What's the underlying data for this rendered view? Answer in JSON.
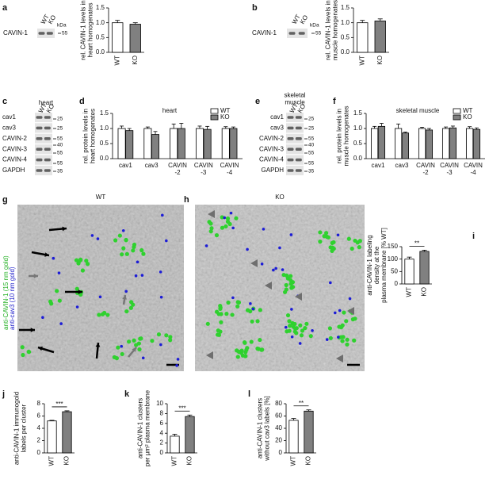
{
  "panel_letters": [
    "a",
    "b",
    "c",
    "d",
    "e",
    "f",
    "g",
    "h",
    "i",
    "j",
    "k",
    "l"
  ],
  "chart_data": [
    {
      "type": "bar",
      "ylabel": "rel. CAVIN-1 levels in\nheart homogenates",
      "categories": [
        "WT",
        "KO"
      ],
      "values": [
        1.0,
        0.95
      ],
      "errors": [
        0.08,
        0.05
      ],
      "colors": [
        "#ffffff",
        "#808080"
      ],
      "ylim": [
        0,
        1.5
      ],
      "yticks": [
        {
          "value": 0,
          "label": "0.0"
        },
        0.5,
        {
          "value": 1,
          "label": "1.0"
        },
        1.5
      ]
    },
    {
      "type": "bar",
      "ylabel": "rel. CAVIN-1 levels in\nmuscle homogenates",
      "categories": [
        "WT",
        "KO"
      ],
      "values": [
        1.0,
        1.06
      ],
      "errors": [
        0.08,
        0.07
      ],
      "colors": [
        "#ffffff",
        "#808080"
      ],
      "ylim": [
        0,
        1.5
      ],
      "yticks": [
        {
          "value": 0,
          "label": "0.0"
        },
        0.5,
        {
          "value": 1,
          "label": "1.0"
        },
        1.5
      ]
    },
    {
      "type": "grouped_bar",
      "title": "heart",
      "ylabel": "rel. protein levels in\nheart homogenates",
      "categories": [
        "cav1",
        "cav3",
        "CAVIN\n-2",
        "CAVIN\n-3",
        "CAVIN\n-4"
      ],
      "series": [
        {
          "name": "WT",
          "color": "#ffffff",
          "values": [
            1.0,
            1.0,
            1.0,
            1.0,
            1.0
          ],
          "errors": [
            0.08,
            0.05,
            0.15,
            0.08,
            0.06
          ]
        },
        {
          "name": "KO",
          "color": "#808080",
          "values": [
            0.93,
            0.8,
            1.0,
            0.97,
            1.0
          ],
          "errors": [
            0.07,
            0.1,
            0.17,
            0.1,
            0.05
          ]
        }
      ],
      "legend": "upper right",
      "ylim": [
        0,
        1.5
      ],
      "yticks": [
        {
          "value": 0,
          "label": "0.0"
        },
        0.5,
        {
          "value": 1,
          "label": "1.0"
        },
        1.5
      ]
    },
    {
      "type": "grouped_bar",
      "title": "skeletal muscle",
      "ylabel": "rel. protein levels in\nmuscle homogenates",
      "categories": [
        "cav1",
        "cav3",
        "CAVIN\n-2",
        "CAVIN\n-3",
        "CAVIN\n-4"
      ],
      "series": [
        {
          "name": "WT",
          "color": "#ffffff",
          "values": [
            1.0,
            1.0,
            1.0,
            1.0,
            1.0
          ],
          "errors": [
            0.07,
            0.15,
            0.04,
            0.05,
            0.06
          ]
        },
        {
          "name": "KO",
          "color": "#808080",
          "values": [
            1.07,
            0.85,
            0.95,
            1.02,
            0.97
          ],
          "errors": [
            0.1,
            0.03,
            0.05,
            0.06,
            0.05
          ]
        }
      ],
      "legend": "upper right",
      "ylim": [
        0,
        1.5
      ],
      "yticks": [
        {
          "value": 0,
          "label": "0.0"
        },
        0.5,
        {
          "value": 1,
          "label": "1.0"
        },
        1.5
      ]
    },
    {
      "type": "bar",
      "ylabel": "anti-CAVIN-1 labeling\ndensity at the\nplasma membrane [% WT]",
      "categories": [
        "WT",
        "KO"
      ],
      "values": [
        100,
        131
      ],
      "errors": [
        8,
        5
      ],
      "colors": [
        "#ffffff",
        "#808080"
      ],
      "ylim": [
        0,
        150
      ],
      "yticks": [
        0,
        50,
        100,
        150
      ],
      "annotation": "**"
    },
    {
      "type": "bar",
      "ylabel": "anti-CAVIN-1 immunogold\nlabels per cluster",
      "categories": [
        "WT",
        "KO"
      ],
      "values": [
        5.2,
        6.7
      ],
      "errors": [
        0.1,
        0.15
      ],
      "colors": [
        "#ffffff",
        "#808080"
      ],
      "ylim": [
        0,
        8
      ],
      "yticks": [
        0,
        2,
        4,
        6,
        8
      ],
      "annotation": "***"
    },
    {
      "type": "bar",
      "ylabel": "anti-CAVIN-1 clusters\nper µm² plasma membrane",
      "categories": [
        "WT",
        "KO"
      ],
      "values": [
        3.4,
        7.4
      ],
      "errors": [
        0.4,
        0.3
      ],
      "colors": [
        "#ffffff",
        "#808080"
      ],
      "ylim": [
        0,
        10
      ],
      "yticks": [
        0,
        2,
        4,
        6,
        8,
        10
      ],
      "annotation": "***"
    },
    {
      "type": "bar",
      "ylabel": "anti-CAVIN-1 clusters\nwithout cav3 labels [%]",
      "categories": [
        "WT",
        "KO"
      ],
      "values": [
        53,
        68
      ],
      "errors": [
        3,
        2
      ],
      "colors": [
        "#ffffff",
        "#808080"
      ],
      "ylim": [
        0,
        80
      ],
      "yticks": [
        0,
        20,
        40,
        60,
        80
      ],
      "annotation": "**"
    }
  ],
  "blots": [
    {
      "lanes": [
        "WT",
        "KO"
      ],
      "unit": "kDa",
      "rows": [
        "CAVIN-1"
      ],
      "markers": [
        "55"
      ]
    },
    {
      "lanes": [
        "WT",
        "KO"
      ],
      "unit": "kDa",
      "rows": [
        "CAVIN-1"
      ],
      "markers": [
        "55"
      ]
    },
    {
      "title": "heart",
      "lanes": [
        "WT",
        "KO"
      ],
      "rows": [
        "cav1",
        "cav3",
        "CAVIN-2",
        "CAVIN-3",
        "CAVIN-4",
        "GAPDH"
      ],
      "markers": [
        "25",
        "25",
        "55",
        "40",
        "55",
        "55",
        "35"
      ]
    },
    {
      "title": "skeletal\nmuscle",
      "lanes": [
        "WT",
        "KO"
      ],
      "rows": [
        "cav1",
        "cav3",
        "CAVIN-2",
        "CAVIN-3",
        "CAVIN-4",
        "GAPDH"
      ],
      "markers": [
        "25",
        "25",
        "55",
        "40",
        "55",
        "55",
        "35"
      ]
    }
  ],
  "micrographs": [
    {
      "title": "WT"
    },
    {
      "title": "KO"
    }
  ],
  "micrograph_legend": [
    "anti-CAVIN-1 (15 nm gold)",
    "anti-cav3 (10 nm gold)"
  ]
}
